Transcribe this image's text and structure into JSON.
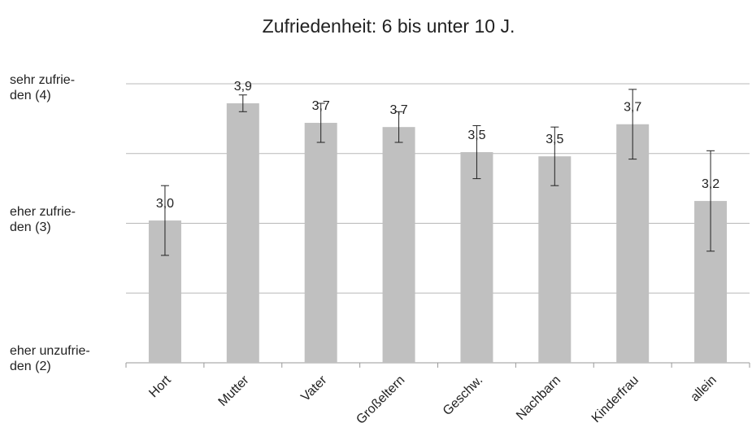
{
  "chart_data": {
    "type": "bar",
    "title": "Zufriedenheit: 6 bis unter 10 J.",
    "categories": [
      "Hort",
      "Mutter",
      "Vater",
      "Großeltern",
      "Geschw.",
      "Nachbarn",
      "Kinderfrau",
      "allein"
    ],
    "values": [
      3.02,
      3.86,
      3.72,
      3.69,
      3.51,
      3.48,
      3.71,
      3.16
    ],
    "value_labels": [
      "3,0",
      "3,9",
      "3,7",
      "3,7",
      "3,5",
      "3,5",
      "3,7",
      "3,2"
    ],
    "errors": [
      0.25,
      0.06,
      0.14,
      0.11,
      0.19,
      0.21,
      0.25,
      0.36
    ],
    "color": "#c0c0c0",
    "ylim": [
      2,
      4
    ],
    "yticks": [
      {
        "value": 2,
        "label": "eher  unzufrie-\nden (2)"
      },
      {
        "value": 3,
        "label": "eher zufrie-\nden (3)"
      },
      {
        "value": 4,
        "label": "sehr zufrie-\nden (4)"
      }
    ],
    "minor_yticks": [
      2.5,
      3.5
    ],
    "grid": true
  }
}
